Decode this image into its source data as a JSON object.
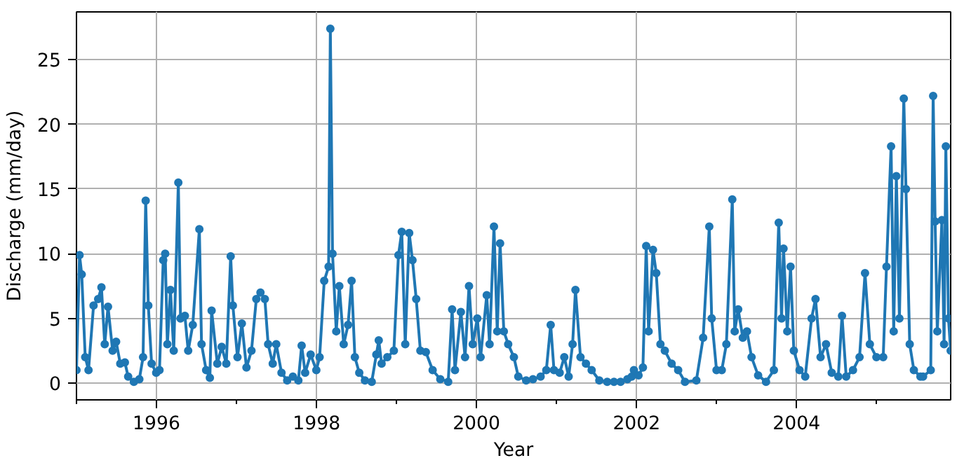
{
  "chart_data": {
    "type": "line",
    "xlabel": "Year",
    "ylabel": "Discharge (mm/day)",
    "x": [
      "1995-01-01",
      "1995-01-15",
      "1995-01-25",
      "1995-02-10",
      "1995-02-25",
      "1995-03-20",
      "1995-04-10",
      "1995-04-25",
      "1995-05-10",
      "1995-05-25",
      "1995-06-15",
      "1995-07-01",
      "1995-07-20",
      "1995-08-10",
      "1995-08-25",
      "1995-09-20",
      "1995-10-15",
      "1995-11-01",
      "1995-11-13",
      "1995-11-25",
      "1995-12-10",
      "1995-12-31",
      "1996-01-15",
      "1996-02-01",
      "1996-02-10",
      "1996-02-20",
      "1996-03-05",
      "1996-03-20",
      "1996-04-10",
      "1996-04-20",
      "1996-05-10",
      "1996-05-25",
      "1996-06-15",
      "1996-07-15",
      "1996-07-25",
      "1996-08-15",
      "1996-09-01",
      "1996-09-09",
      "1996-10-05",
      "1996-10-25",
      "1996-11-15",
      "1996-12-05",
      "1996-12-15",
      "1997-01-05",
      "1997-01-25",
      "1997-02-15",
      "1997-03-10",
      "1997-04-01",
      "1997-04-20",
      "1997-05-10",
      "1997-05-25",
      "1997-06-15",
      "1997-07-01",
      "1997-07-25",
      "1997-08-20",
      "1997-09-15",
      "1997-10-10",
      "1997-10-25",
      "1997-11-10",
      "1997-12-05",
      "1997-12-31",
      "1998-01-15",
      "1998-02-05",
      "1998-02-25",
      "1998-03-05",
      "1998-03-15",
      "1998-04-01",
      "1998-04-15",
      "1998-05-05",
      "1998-05-25",
      "1998-06-10",
      "1998-06-25",
      "1998-07-15",
      "1998-08-10",
      "1998-09-10",
      "1998-10-01",
      "1998-10-12",
      "1998-10-25",
      "1998-11-20",
      "1998-12-20",
      "1999-01-10",
      "1999-01-25",
      "1999-02-10",
      "1999-02-28",
      "1999-03-15",
      "1999-04-01",
      "1999-04-20",
      "1999-05-15",
      "1999-06-15",
      "1999-07-20",
      "1999-08-25",
      "1999-09-12",
      "1999-09-25",
      "1999-10-22",
      "1999-11-10",
      "1999-11-28",
      "1999-12-15",
      "2000-01-05",
      "2000-01-20",
      "2000-02-17",
      "2000-03-01",
      "2000-03-21",
      "2000-04-05",
      "2000-04-18",
      "2000-05-05",
      "2000-05-25",
      "2000-06-20",
      "2000-07-10",
      "2000-08-15",
      "2000-09-15",
      "2000-10-20",
      "2000-11-15",
      "2000-12-05",
      "2000-12-20",
      "2001-01-15",
      "2001-02-05",
      "2001-02-25",
      "2001-03-15",
      "2001-03-28",
      "2001-04-20",
      "2001-05-15",
      "2001-06-10",
      "2001-07-15",
      "2001-08-20",
      "2001-09-20",
      "2001-10-20",
      "2001-11-20",
      "2001-12-10",
      "2001-12-20",
      "2002-01-10",
      "2002-01-30",
      "2002-02-14",
      "2002-02-25",
      "2002-03-17",
      "2002-04-01",
      "2002-04-20",
      "2002-05-10",
      "2002-06-10",
      "2002-07-10",
      "2002-08-10",
      "2002-10-01",
      "2002-11-01",
      "2002-11-29",
      "2002-12-10",
      "2003-01-01",
      "2003-01-25",
      "2003-02-15",
      "2003-03-14",
      "2003-03-25",
      "2003-04-10",
      "2003-05-01",
      "2003-05-20",
      "2003-06-10",
      "2003-07-10",
      "2003-08-15",
      "2003-09-20",
      "2003-10-12",
      "2003-10-25",
      "2003-11-03",
      "2003-11-20",
      "2003-12-05",
      "2003-12-20",
      "2004-01-15",
      "2004-02-10",
      "2004-03-10",
      "2004-03-28",
      "2004-04-20",
      "2004-05-15",
      "2004-06-10",
      "2004-07-10",
      "2004-07-27",
      "2004-08-15",
      "2004-09-15",
      "2004-10-15",
      "2004-11-09",
      "2004-12-01",
      "2004-12-31",
      "2005-01-31",
      "2005-02-15",
      "2005-03-08",
      "2005-03-20",
      "2005-04-01",
      "2005-04-15",
      "2005-05-05",
      "2005-05-15",
      "2005-06-01",
      "2005-06-20",
      "2005-07-20",
      "2005-08-01",
      "2005-09-05",
      "2005-09-16",
      "2005-09-25",
      "2005-10-05",
      "2005-10-26",
      "2005-11-05",
      "2005-11-13",
      "2005-11-25",
      "2005-12-05"
    ],
    "series": [
      {
        "color": "#1f77b4",
        "values": [
          1.0,
          9.9,
          8.4,
          2.0,
          1.0,
          6.0,
          6.5,
          7.4,
          3.0,
          5.9,
          2.5,
          3.2,
          1.5,
          1.6,
          0.5,
          0.1,
          0.3,
          2.0,
          14.1,
          6.0,
          1.5,
          0.8,
          1.0,
          9.5,
          10.0,
          3.0,
          7.2,
          2.5,
          15.5,
          5.0,
          5.2,
          2.5,
          4.5,
          11.9,
          3.0,
          1.0,
          0.4,
          5.6,
          1.5,
          2.8,
          1.5,
          9.8,
          6.0,
          2.0,
          4.6,
          1.2,
          2.5,
          6.5,
          7.0,
          6.5,
          3.0,
          1.5,
          3.0,
          0.8,
          0.2,
          0.5,
          0.2,
          2.9,
          0.8,
          2.2,
          1.0,
          2.0,
          7.9,
          9.0,
          27.4,
          10.0,
          4.0,
          7.5,
          3.0,
          4.5,
          7.9,
          2.0,
          0.8,
          0.2,
          0.1,
          2.2,
          3.3,
          1.5,
          2.0,
          2.5,
          9.9,
          11.7,
          3.0,
          11.6,
          9.5,
          6.5,
          2.5,
          2.4,
          1.0,
          0.3,
          0.1,
          5.7,
          1.0,
          5.5,
          2.0,
          7.5,
          3.0,
          5.0,
          2.0,
          6.8,
          3.0,
          12.1,
          4.0,
          10.8,
          4.0,
          3.0,
          2.0,
          0.5,
          0.2,
          0.3,
          0.5,
          1.0,
          4.5,
          1.0,
          0.8,
          2.0,
          0.5,
          3.0,
          7.2,
          2.0,
          1.5,
          1.0,
          0.2,
          0.1,
          0.1,
          0.1,
          0.3,
          0.5,
          1.0,
          0.6,
          1.2,
          10.6,
          4.0,
          10.3,
          8.5,
          3.0,
          2.5,
          1.5,
          1.0,
          0.1,
          0.2,
          3.5,
          12.1,
          5.0,
          1.0,
          1.0,
          3.0,
          14.2,
          4.0,
          5.7,
          3.5,
          4.0,
          2.0,
          0.6,
          0.1,
          1.0,
          12.4,
          5.0,
          10.4,
          4.0,
          9.0,
          2.5,
          1.0,
          0.5,
          5.0,
          6.5,
          2.0,
          3.0,
          0.8,
          0.5,
          5.2,
          0.5,
          1.0,
          2.0,
          8.5,
          3.0,
          2.0,
          2.0,
          9.0,
          18.3,
          4.0,
          16.0,
          5.0,
          22.0,
          15.0,
          3.0,
          1.0,
          0.5,
          0.5,
          1.0,
          22.2,
          12.5,
          4.0,
          12.6,
          3.0,
          18.3,
          5.0,
          2.5
        ]
      }
    ],
    "xlim": [
      "1995-01-01",
      "2005-12-05"
    ],
    "ylim": [
      -1.3,
      28.7
    ],
    "xticks": [
      {
        "value": "1995-01-01",
        "label": null
      },
      {
        "value": "1996-01-01",
        "label": "1996"
      },
      {
        "value": "1997-01-01",
        "label": null
      },
      {
        "value": "1998-01-01",
        "label": "1998"
      },
      {
        "value": "1999-01-01",
        "label": null
      },
      {
        "value": "2000-01-01",
        "label": "2000"
      },
      {
        "value": "2001-01-01",
        "label": null
      },
      {
        "value": "2002-01-01",
        "label": "2002"
      },
      {
        "value": "2003-01-01",
        "label": null
      },
      {
        "value": "2004-01-01",
        "label": "2004"
      },
      {
        "value": "2005-01-01",
        "label": null
      }
    ],
    "yticks": [
      0,
      5,
      10,
      15,
      20,
      25
    ],
    "grid": true,
    "marker": "circle",
    "line_style": "solid"
  }
}
